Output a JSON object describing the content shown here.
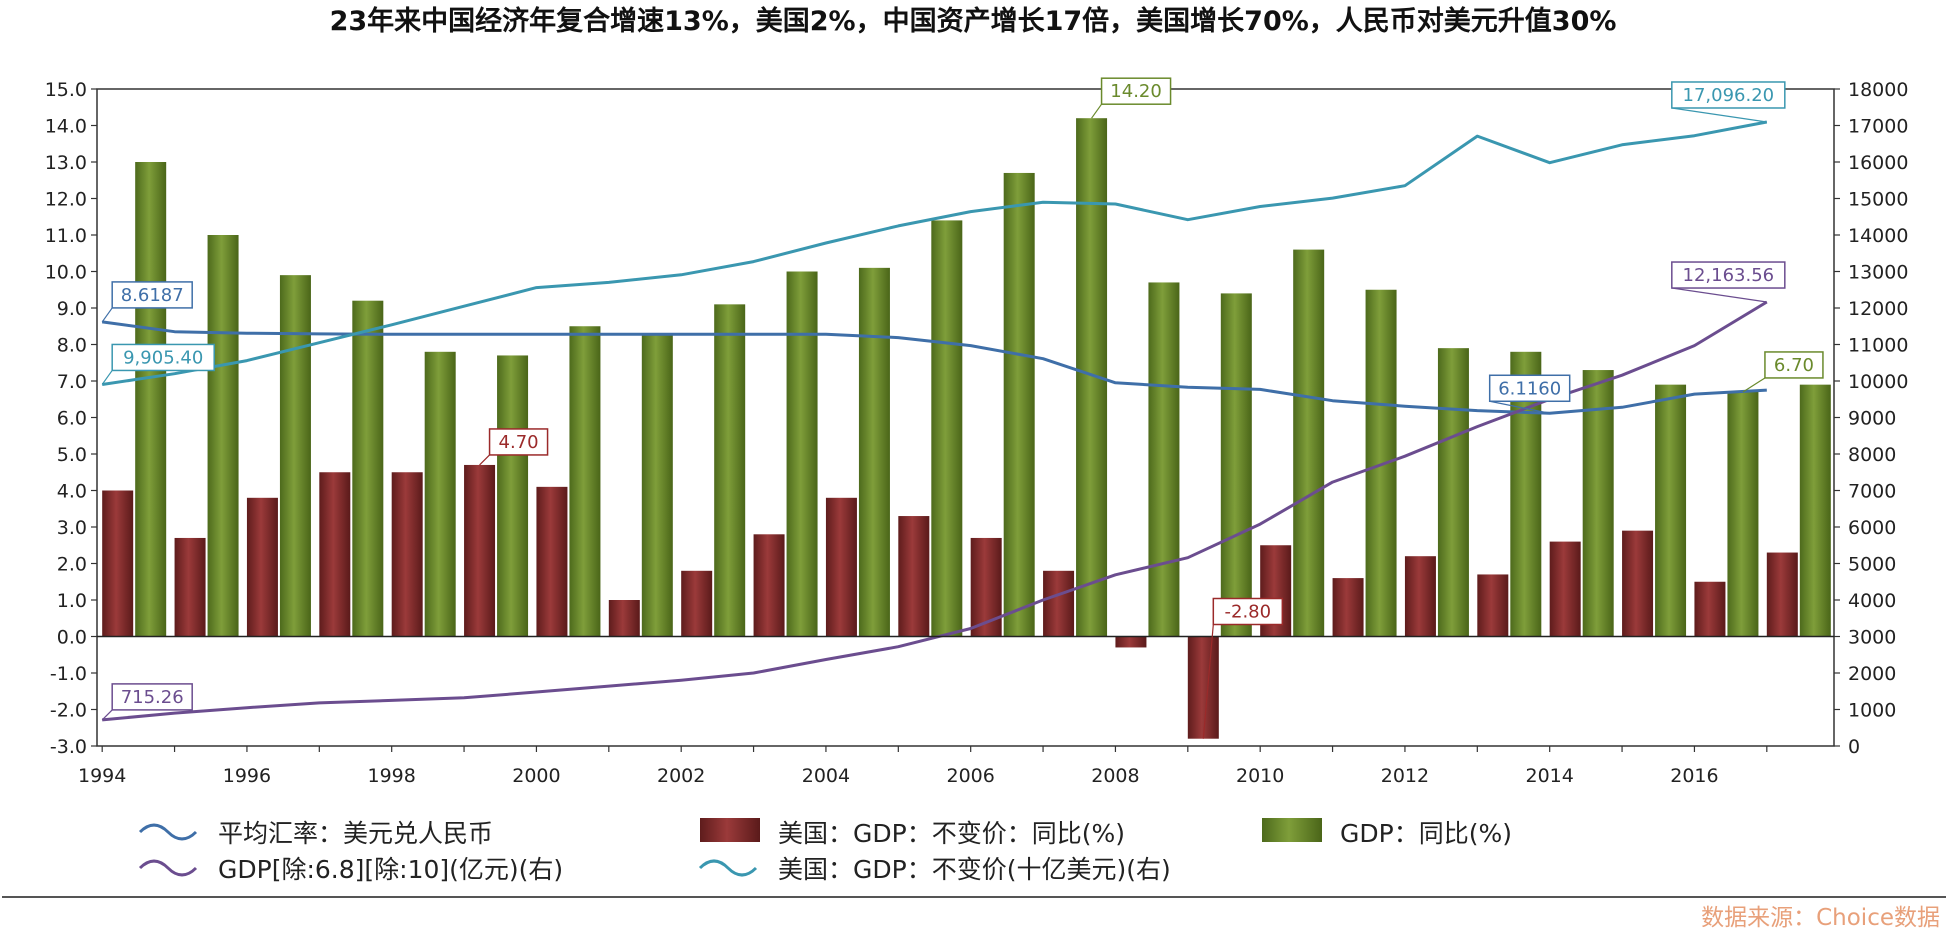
{
  "chart_data": {
    "type": "bar+line",
    "title": "23年来中国经济年复合增速13%，美国2%，中国资产增长17倍，美国增长70%，人民币对美元升值30%",
    "source": "数据来源：Choice数据",
    "x_tick_labels": [
      "1994",
      "1996",
      "1998",
      "2000",
      "2002",
      "2004",
      "2006",
      "2008",
      "2010",
      "2012",
      "2014",
      "2016"
    ],
    "years": [
      1994,
      1995,
      1996,
      1997,
      1998,
      1999,
      2000,
      2001,
      2002,
      2003,
      2004,
      2005,
      2006,
      2007,
      2008,
      2009,
      2010,
      2011,
      2012,
      2013,
      2014,
      2015,
      2016,
      2017
    ],
    "left_axis": {
      "min": -3.0,
      "max": 15.0,
      "step": 1.0,
      "ticks": [
        "-3.0",
        "-2.0",
        "-1.0",
        "0.0",
        "1.0",
        "2.0",
        "3.0",
        "4.0",
        "5.0",
        "6.0",
        "7.0",
        "8.0",
        "9.0",
        "10.0",
        "11.0",
        "12.0",
        "13.0",
        "14.0",
        "15.0"
      ]
    },
    "right_axis": {
      "min": 0,
      "max": 18000,
      "step": 1000,
      "ticks": [
        "0",
        "1000",
        "2000",
        "3000",
        "4000",
        "5000",
        "6000",
        "7000",
        "8000",
        "9000",
        "10000",
        "11000",
        "12000",
        "13000",
        "14000",
        "15000",
        "16000",
        "17000",
        "18000"
      ]
    },
    "series": [
      {
        "name": "平均汇率：美元兑人民币",
        "type": "line",
        "axis": "left",
        "color": "#3f6fa8",
        "values": [
          8.6187,
          8.35,
          8.31,
          8.29,
          8.28,
          8.28,
          8.28,
          8.28,
          8.28,
          8.28,
          8.28,
          8.19,
          7.97,
          7.61,
          6.95,
          6.83,
          6.77,
          6.46,
          6.31,
          6.19,
          6.116,
          6.28,
          6.64,
          6.75
        ]
      },
      {
        "name": "美国：GDP：不变价：同比(%)",
        "type": "bar",
        "axis": "left",
        "color": "#7f2b2b",
        "values": [
          4.0,
          2.7,
          3.8,
          4.5,
          4.5,
          4.7,
          4.1,
          1.0,
          1.8,
          2.8,
          3.8,
          3.3,
          2.7,
          1.8,
          -0.3,
          -2.8,
          2.5,
          1.6,
          2.2,
          1.7,
          2.6,
          2.9,
          1.5,
          2.3
        ]
      },
      {
        "name": "GDP：同比(%)",
        "type": "bar",
        "axis": "left",
        "color": "#6a8a2c",
        "values": [
          13.0,
          11.0,
          9.9,
          9.2,
          7.8,
          7.7,
          8.5,
          8.3,
          9.1,
          10.0,
          10.1,
          11.4,
          12.7,
          14.2,
          9.7,
          9.4,
          10.6,
          9.5,
          7.9,
          7.8,
          7.3,
          6.9,
          6.7,
          6.9
        ]
      },
      {
        "name": "GDP[除:6.8][除:10](亿元)(右)",
        "type": "line",
        "axis": "right",
        "color": "#6b4d8f",
        "values": [
          715.26,
          900,
          1050,
          1180,
          1250,
          1320,
          1480,
          1640,
          1800,
          2000,
          2370,
          2720,
          3220,
          4000,
          4690,
          5160,
          6080,
          7230,
          7940,
          8750,
          9500,
          10160,
          10970,
          12163.56
        ]
      },
      {
        "name": "美国：GDP：不变价(十亿美元)(右)",
        "type": "line",
        "axis": "right",
        "color": "#3a97b0",
        "values": [
          9905.4,
          10200,
          10560,
          11050,
          11540,
          12050,
          12560,
          12700,
          12910,
          13270,
          13780,
          14250,
          14640,
          14900,
          14850,
          14420,
          14780,
          15010,
          15350,
          16710,
          15980,
          16470,
          16720,
          17096.2
        ]
      }
    ],
    "callouts": [
      {
        "series": 0,
        "year": 1994,
        "text": "8.6187"
      },
      {
        "series": 0,
        "year": 2014,
        "text": "6.1160"
      },
      {
        "series": 1,
        "year": 1999,
        "text": "4.70"
      },
      {
        "series": 1,
        "year": 2009,
        "text": "-2.80"
      },
      {
        "series": 2,
        "year": 2007,
        "text": "14.20"
      },
      {
        "series": 2,
        "year": 2016,
        "text": "6.70"
      },
      {
        "series": 3,
        "year": 1994,
        "text": "715.26"
      },
      {
        "series": 3,
        "year": 2017,
        "text": "12,163.56"
      },
      {
        "series": 4,
        "year": 1994,
        "text": "9,905.40"
      },
      {
        "series": 4,
        "year": 2017,
        "text": "17,096.20"
      }
    ],
    "legend": [
      {
        "label": "平均汇率：美元兑人民币",
        "kind": "line",
        "color": "#3f6fa8"
      },
      {
        "label": "美国：GDP：不变价：同比(%)",
        "kind": "bar",
        "color": "#7f2b2b"
      },
      {
        "label": "GDP：同比(%)",
        "kind": "bar",
        "color": "#6a8a2c"
      },
      {
        "label": "GDP[除:6.8][除:10](亿元)(右)",
        "kind": "line",
        "color": "#6b4d8f"
      },
      {
        "label": "美国：GDP：不变价(十亿美元)(右)",
        "kind": "line",
        "color": "#3a97b0"
      }
    ]
  }
}
